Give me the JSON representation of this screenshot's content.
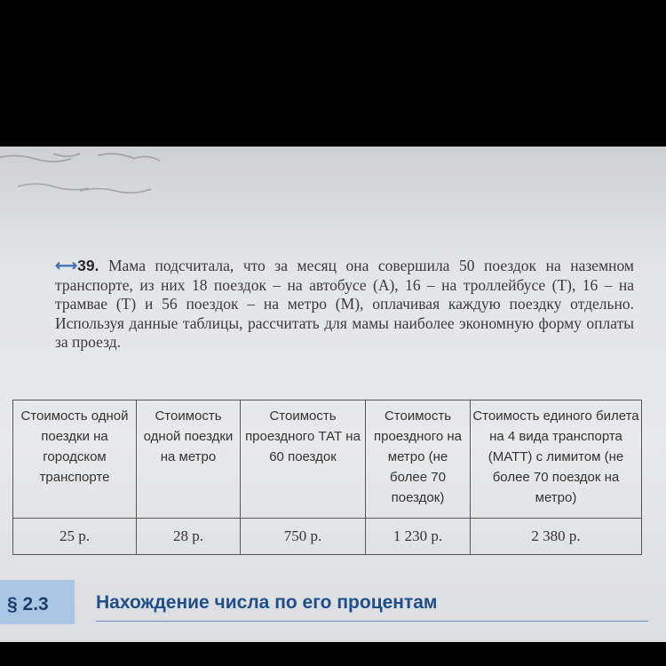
{
  "problem": {
    "icon": "double-arrow-icon",
    "number": "39.",
    "text": "Мама подсчитала, что за месяц она совершила 50 поездок на наземном транспорте, из них 18 поездок – на автобусе (А), 16 – на троллейбусе (Т), 16 – на трамвае (Т) и 56 поездок – на метро (М), оплачивая каждую поездку отдельно. Используя данные таблицы, рассчитать для мамы наиболее экономную форму оплаты за проезд."
  },
  "table": {
    "headers": [
      "Стоимость одной поездки на городском транспорте",
      "Стоимость одной поездки на метро",
      "Стоимость проездного ТАТ на 60 поездок",
      "Стоимость проездного на метро (не более 70 поездок)",
      "Стоимость единого билета на 4 вида транспорта (МАТТ) с лимитом (не более 70 поездок на метро)"
    ],
    "values": [
      "25 р.",
      "28 р.",
      "750 р.",
      "1 230 р.",
      "2 380 р."
    ]
  },
  "section": {
    "number": "§ 2.3",
    "title": "Нахождение числа по его процентам"
  }
}
